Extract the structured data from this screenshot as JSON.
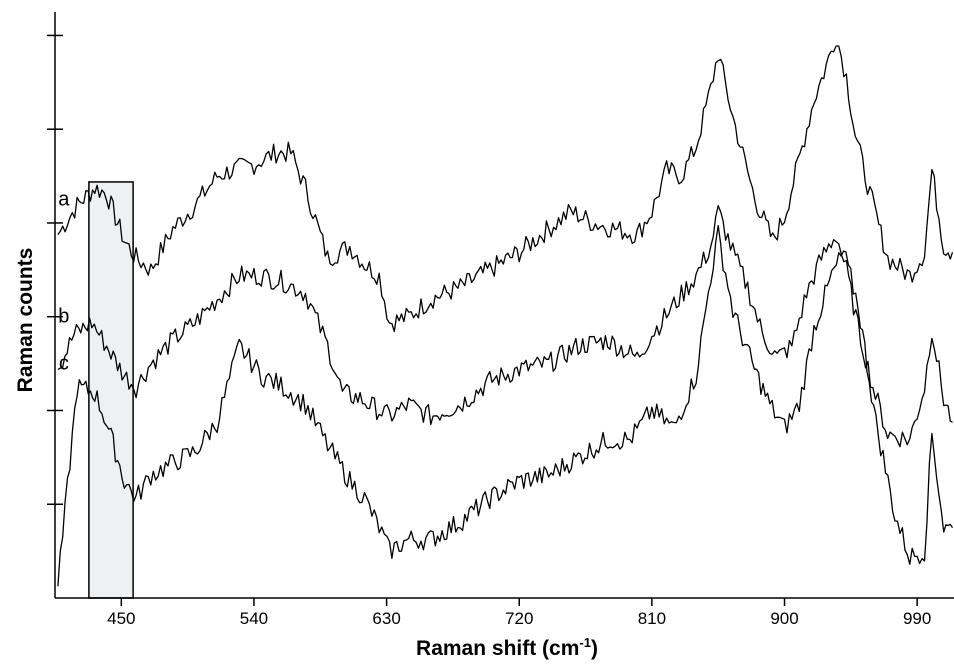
{
  "chart_data": {
    "type": "line",
    "title": "",
    "xlabel": "Raman shift (cm",
    "xlabel_sup": "-1",
    "xlabel_close": ")",
    "ylabel": "Raman counts",
    "xlim": [
      405,
      1015
    ],
    "ylim": [
      0,
      100
    ],
    "x_ticks": [
      450,
      540,
      630,
      720,
      810,
      900,
      990
    ],
    "x_tick_labels": [
      "450",
      "540",
      "630",
      "720",
      "810",
      "900",
      "990"
    ],
    "y_ticks": [
      16,
      32,
      48,
      64,
      80,
      96
    ],
    "grid": false,
    "legend": "none",
    "line_color": "#000000",
    "highlight_region": {
      "x_range": [
        428,
        458
      ],
      "y_range": [
        0,
        71
      ],
      "fill": "#eef1f4"
    },
    "series": [
      {
        "name": "a",
        "label_x": 411,
        "label_y": 67,
        "x": [
          407,
          420,
          432,
          440,
          452,
          460,
          470,
          485,
          500,
          515,
          525,
          540,
          555,
          565,
          575,
          590,
          605,
          615,
          625,
          632,
          645,
          660,
          680,
          700,
          720,
          740,
          755,
          770,
          785,
          800,
          810,
          820,
          830,
          840,
          850,
          855,
          865,
          880,
          892,
          900,
          912,
          920,
          930,
          935,
          942,
          948,
          958,
          970,
          985,
          995,
          1000,
          1008,
          1014
        ],
        "y": [
          62,
          67,
          70,
          69,
          61,
          58,
          56,
          63,
          67,
          72,
          73,
          74,
          76,
          76,
          70,
          58,
          60,
          57,
          55,
          47,
          48,
          51,
          53,
          56,
          59,
          63,
          66,
          64,
          63,
          62,
          66,
          73,
          72,
          77,
          87,
          93,
          82,
          68,
          61,
          65,
          77,
          85,
          92,
          96,
          89,
          79,
          69,
          58,
          55,
          59,
          73,
          60,
          59
        ]
      },
      {
        "name": "b",
        "label_x": 411,
        "label_y": 47,
        "x": [
          407,
          418,
          430,
          440,
          452,
          460,
          470,
          485,
          500,
          515,
          530,
          545,
          560,
          575,
          590,
          600,
          612,
          625,
          632,
          645,
          660,
          680,
          700,
          720,
          740,
          760,
          780,
          800,
          810,
          825,
          840,
          850,
          855,
          865,
          875,
          885,
          895,
          905,
          915,
          925,
          935,
          942,
          950,
          960,
          970,
          985,
          995,
          1000,
          1008,
          1014
        ],
        "y": [
          39,
          45,
          47,
          43,
          38,
          36,
          40,
          44,
          47,
          51,
          55,
          55,
          54,
          52,
          43,
          35,
          34,
          32,
          31,
          33,
          31,
          33,
          37,
          39,
          40,
          43,
          44,
          41,
          45,
          50,
          55,
          60,
          66,
          59,
          53,
          45,
          41,
          43,
          52,
          58,
          62,
          56,
          46,
          36,
          28,
          27,
          36,
          46,
          34,
          30
        ]
      },
      {
        "name": "c",
        "label_x": 411,
        "label_y": 39,
        "x": [
          407,
          420,
          432,
          440,
          452,
          460,
          470,
          485,
          500,
          515,
          530,
          545,
          560,
          575,
          590,
          605,
          615,
          625,
          632,
          645,
          660,
          680,
          700,
          720,
          740,
          760,
          780,
          795,
          810,
          825,
          840,
          850,
          855,
          865,
          878,
          890,
          900,
          910,
          920,
          932,
          940,
          950,
          962,
          975,
          985,
          995,
          1000,
          1008,
          1014
        ],
        "y": [
          2,
          36,
          35,
          30,
          20,
          17,
          21,
          23,
          25,
          30,
          43,
          38,
          36,
          33,
          26,
          20,
          17,
          12,
          8,
          10,
          10,
          13,
          17,
          20,
          21,
          24,
          27,
          27,
          32,
          29,
          38,
          55,
          62,
          49,
          40,
          33,
          29,
          33,
          46,
          55,
          59,
          50,
          30,
          14,
          7,
          8,
          28,
          12,
          12
        ]
      }
    ]
  }
}
